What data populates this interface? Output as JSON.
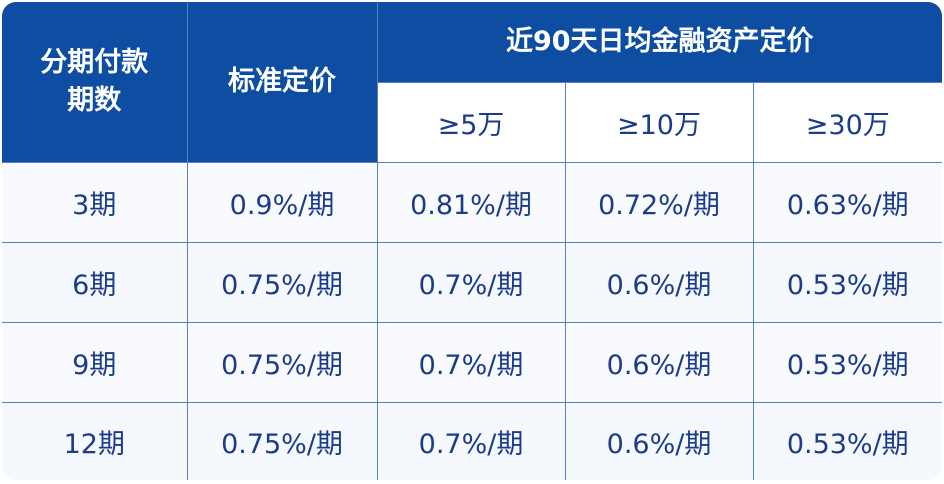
{
  "table": {
    "header": {
      "term_label": "分期付款\n期数",
      "standard_label": "标准定价",
      "asset_group_label": "近90天日均金融资产定价",
      "asset_tiers": [
        "≥5万",
        "≥10万",
        "≥30万"
      ]
    },
    "rows": [
      {
        "term": "3期",
        "standard": "0.9%/期",
        "tiers": [
          "0.81%/期",
          "0.72%/期",
          "0.63%/期"
        ]
      },
      {
        "term": "6期",
        "standard": "0.75%/期",
        "tiers": [
          "0.7%/期",
          "0.6%/期",
          "0.53%/期"
        ]
      },
      {
        "term": "9期",
        "standard": "0.75%/期",
        "tiers": [
          "0.7%/期",
          "0.6%/期",
          "0.53%/期"
        ]
      },
      {
        "term": "12期",
        "standard": "0.75%/期",
        "tiers": [
          "0.7%/期",
          "0.6%/期",
          "0.53%/期"
        ]
      }
    ]
  },
  "colors": {
    "header_bg": "#0d4ea2",
    "text": "#1b3c8a",
    "grid": "#5b7fc2"
  }
}
